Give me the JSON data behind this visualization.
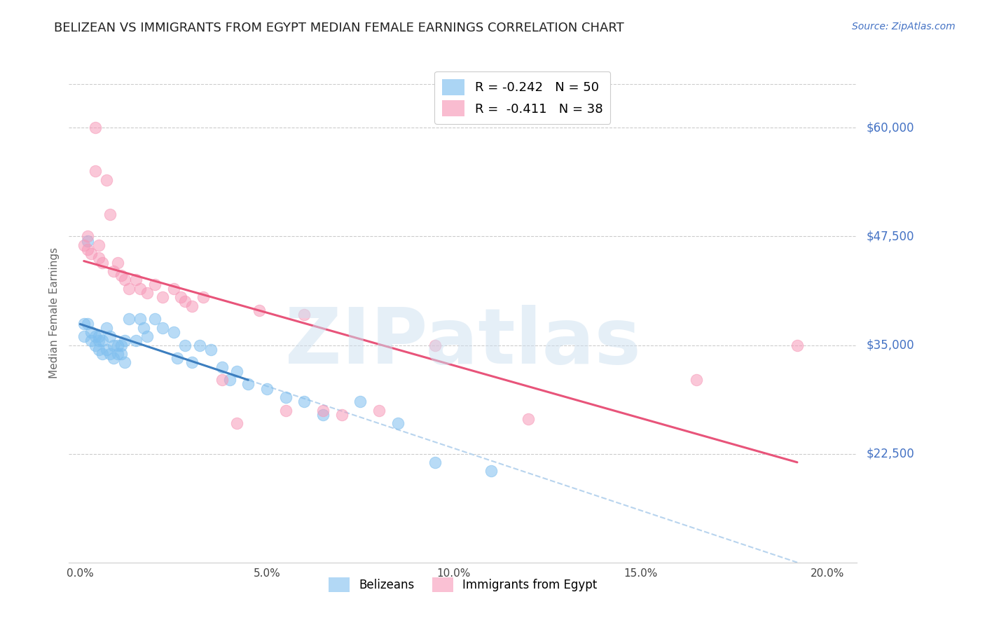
{
  "title": "BELIZEAN VS IMMIGRANTS FROM EGYPT MEDIAN FEMALE EARNINGS CORRELATION CHART",
  "source": "Source: ZipAtlas.com",
  "ylabel": "Median Female Earnings",
  "xlabel_ticks": [
    "0.0%",
    "5.0%",
    "10.0%",
    "15.0%",
    "20.0%"
  ],
  "xlabel_vals": [
    0.0,
    0.05,
    0.1,
    0.15,
    0.2
  ],
  "ytick_labels": [
    "$22,500",
    "$35,000",
    "$47,500",
    "$60,000"
  ],
  "ytick_vals": [
    22500,
    35000,
    47500,
    60000
  ],
  "ymin": 10000,
  "ymax": 67500,
  "xmin": -0.003,
  "xmax": 0.208,
  "belizean_color": "#7fbfef",
  "egypt_color": "#f799b8",
  "trendline_blue_color": "#3c7ebf",
  "trendline_pink_color": "#e8547a",
  "trendline_dashed_color": "#b8d4ee",
  "watermark": "ZIPatlas",
  "legend_label_blue": "R = -0.242   N = 50",
  "legend_label_pink": "R =  -0.411   N = 38",
  "belizean_x": [
    0.001,
    0.001,
    0.002,
    0.002,
    0.003,
    0.003,
    0.004,
    0.004,
    0.005,
    0.005,
    0.005,
    0.006,
    0.006,
    0.007,
    0.007,
    0.008,
    0.008,
    0.009,
    0.009,
    0.01,
    0.01,
    0.011,
    0.011,
    0.012,
    0.012,
    0.013,
    0.015,
    0.016,
    0.017,
    0.018,
    0.02,
    0.022,
    0.025,
    0.026,
    0.028,
    0.03,
    0.032,
    0.035,
    0.038,
    0.04,
    0.042,
    0.045,
    0.05,
    0.055,
    0.06,
    0.065,
    0.075,
    0.085,
    0.095,
    0.11
  ],
  "belizean_y": [
    37500,
    36000,
    47000,
    37500,
    36500,
    35500,
    36000,
    35000,
    36000,
    35500,
    34500,
    35500,
    34000,
    37000,
    34500,
    36000,
    34000,
    35000,
    33500,
    35000,
    34000,
    35000,
    34000,
    35500,
    33000,
    38000,
    35500,
    38000,
    37000,
    36000,
    38000,
    37000,
    36500,
    33500,
    35000,
    33000,
    35000,
    34500,
    32500,
    31000,
    32000,
    30500,
    30000,
    29000,
    28500,
    27000,
    28500,
    26000,
    21500,
    20500
  ],
  "egypt_x": [
    0.001,
    0.002,
    0.002,
    0.003,
    0.004,
    0.004,
    0.005,
    0.005,
    0.006,
    0.007,
    0.008,
    0.009,
    0.01,
    0.011,
    0.012,
    0.013,
    0.015,
    0.016,
    0.018,
    0.02,
    0.022,
    0.025,
    0.027,
    0.028,
    0.03,
    0.033,
    0.038,
    0.042,
    0.048,
    0.055,
    0.06,
    0.065,
    0.07,
    0.08,
    0.095,
    0.12,
    0.165,
    0.192
  ],
  "egypt_y": [
    46500,
    47500,
    46000,
    45500,
    60000,
    55000,
    45000,
    46500,
    44500,
    54000,
    50000,
    43500,
    44500,
    43000,
    42500,
    41500,
    42500,
    41500,
    41000,
    42000,
    40500,
    41500,
    40500,
    40000,
    39500,
    40500,
    31000,
    26000,
    39000,
    27500,
    38500,
    27500,
    27000,
    27500,
    35000,
    26500,
    31000,
    35000
  ]
}
